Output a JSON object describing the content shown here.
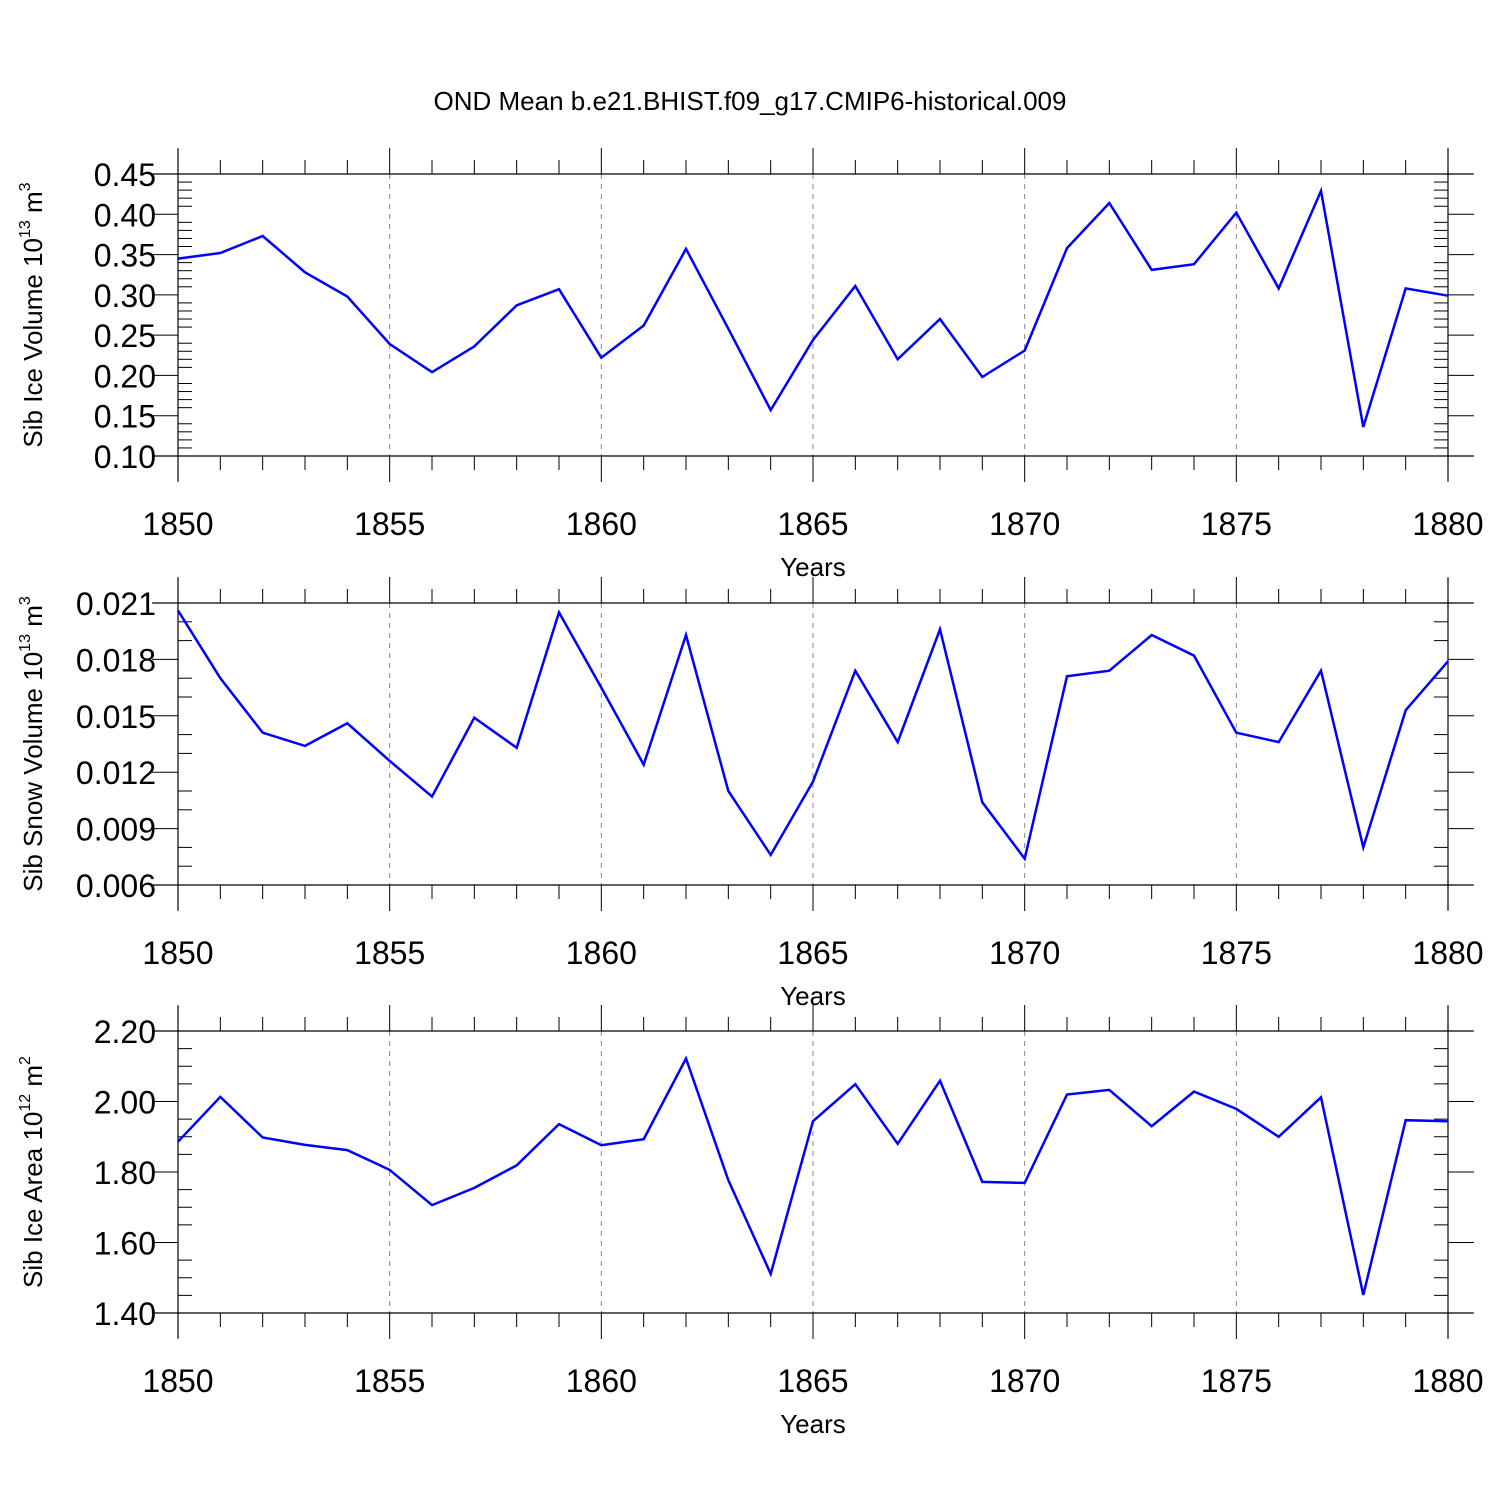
{
  "title": "OND Mean b.e21.BHIST.f09_g17.CMIP6-historical.009",
  "line_color": "#0000ff",
  "chart_data": [
    {
      "type": "line",
      "ylabel": "Sib Ice Volume 10",
      "ylabel_exp": "13",
      "ylabel_unit": " m",
      "ylabel_unit_exp": "3",
      "xlabel": "Years",
      "xlim": [
        1850,
        1880
      ],
      "ylim": [
        0.1,
        0.45
      ],
      "xticks": [
        1850,
        1855,
        1860,
        1865,
        1870,
        1875,
        1880
      ],
      "xtick_labels": [
        "1850",
        "1855",
        "1860",
        "1865",
        "1870",
        "1875",
        "1880"
      ],
      "yticks": [
        0.1,
        0.15,
        0.2,
        0.25,
        0.3,
        0.35,
        0.4,
        0.45
      ],
      "ytick_labels": [
        "0.10",
        "0.15",
        "0.20",
        "0.25",
        "0.30",
        "0.35",
        "0.40",
        "0.45"
      ],
      "grid": "vertical dashed at major x ticks",
      "x": [
        1850,
        1851,
        1852,
        1853,
        1854,
        1855,
        1856,
        1857,
        1858,
        1859,
        1860,
        1861,
        1862,
        1863,
        1864,
        1865,
        1866,
        1867,
        1868,
        1869,
        1870,
        1871,
        1872,
        1873,
        1874,
        1875,
        1876,
        1877,
        1878,
        1879,
        1880
      ],
      "values": [
        0.345,
        0.352,
        0.373,
        0.328,
        0.298,
        0.239,
        0.204,
        0.236,
        0.287,
        0.307,
        0.222,
        0.262,
        0.357,
        0.258,
        0.157,
        0.244,
        0.311,
        0.22,
        0.27,
        0.198,
        0.231,
        0.358,
        0.414,
        0.331,
        0.338,
        0.402,
        0.308,
        0.429,
        0.136,
        0.308,
        0.299
      ]
    },
    {
      "type": "line",
      "ylabel": "Sib Snow Volume 10",
      "ylabel_exp": "13",
      "ylabel_unit": " m",
      "ylabel_unit_exp": "3",
      "xlabel": "Years",
      "xlim": [
        1850,
        1880
      ],
      "ylim": [
        0.006,
        0.021
      ],
      "xticks": [
        1850,
        1855,
        1860,
        1865,
        1870,
        1875,
        1880
      ],
      "xtick_labels": [
        "1850",
        "1855",
        "1860",
        "1865",
        "1870",
        "1875",
        "1880"
      ],
      "yticks": [
        0.006,
        0.009,
        0.012,
        0.015,
        0.018,
        0.021
      ],
      "ytick_labels": [
        "0.006",
        "0.009",
        "0.012",
        "0.015",
        "0.018",
        "0.021"
      ],
      "grid": "vertical dashed at major x ticks",
      "x": [
        1850,
        1851,
        1852,
        1853,
        1854,
        1855,
        1856,
        1857,
        1858,
        1859,
        1860,
        1861,
        1862,
        1863,
        1864,
        1865,
        1866,
        1867,
        1868,
        1869,
        1870,
        1871,
        1872,
        1873,
        1874,
        1875,
        1876,
        1877,
        1878,
        1879,
        1880
      ],
      "values": [
        0.0206,
        0.017,
        0.0141,
        0.0134,
        0.0146,
        0.0126,
        0.0107,
        0.0149,
        0.0133,
        0.0205,
        0.0165,
        0.0124,
        0.0193,
        0.011,
        0.0076,
        0.0115,
        0.0174,
        0.0136,
        0.0196,
        0.0104,
        0.0074,
        0.0171,
        0.0174,
        0.0193,
        0.0182,
        0.0141,
        0.0136,
        0.0174,
        0.008,
        0.0153,
        0.0179
      ]
    },
    {
      "type": "line",
      "ylabel": "Sib Ice Area 10",
      "ylabel_exp": "12",
      "ylabel_unit": " m",
      "ylabel_unit_exp": "2",
      "xlabel": "Years",
      "xlim": [
        1850,
        1880
      ],
      "ylim": [
        1.4,
        2.2
      ],
      "xticks": [
        1850,
        1855,
        1860,
        1865,
        1870,
        1875,
        1880
      ],
      "xtick_labels": [
        "1850",
        "1855",
        "1860",
        "1865",
        "1870",
        "1875",
        "1880"
      ],
      "yticks": [
        1.4,
        1.6,
        1.8,
        2.0,
        2.2
      ],
      "ytick_labels": [
        "1.40",
        "1.60",
        "1.80",
        "2.00",
        "2.20"
      ],
      "grid": "vertical dashed at major x ticks",
      "x": [
        1850,
        1851,
        1852,
        1853,
        1854,
        1855,
        1856,
        1857,
        1858,
        1859,
        1860,
        1861,
        1862,
        1863,
        1864,
        1865,
        1866,
        1867,
        1868,
        1869,
        1870,
        1871,
        1872,
        1873,
        1874,
        1875,
        1876,
        1877,
        1878,
        1879,
        1880
      ],
      "values": [
        1.886,
        2.013,
        1.898,
        1.877,
        1.862,
        1.806,
        1.706,
        1.755,
        1.819,
        1.936,
        1.876,
        1.893,
        2.122,
        1.777,
        1.511,
        1.944,
        2.049,
        1.88,
        2.059,
        1.772,
        1.769,
        2.02,
        2.033,
        1.93,
        2.028,
        1.979,
        1.9,
        2.012,
        1.451,
        1.947,
        1.944
      ]
    }
  ]
}
